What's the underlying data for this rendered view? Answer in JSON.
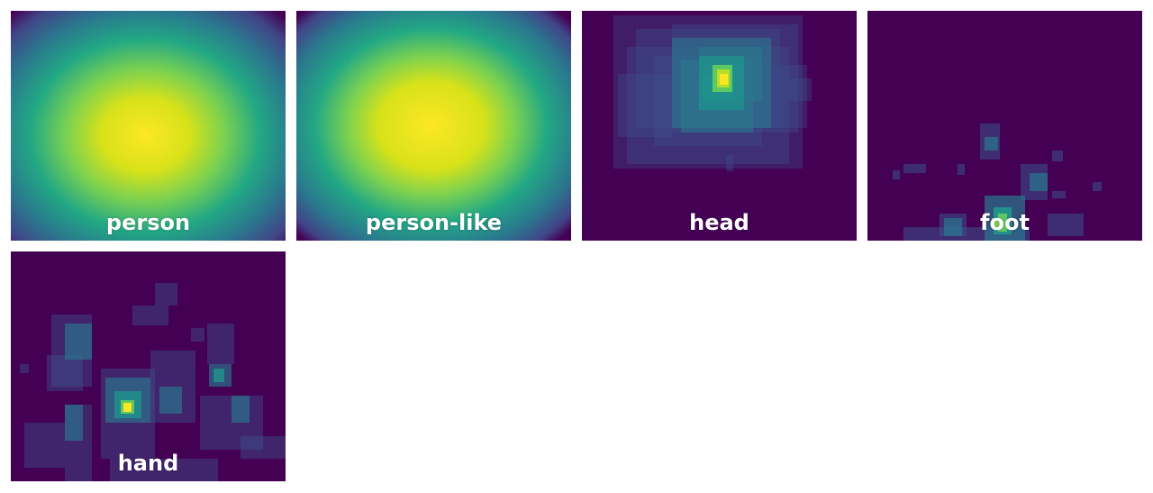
{
  "colors": {
    "background": "#440154",
    "low": "#3b528b",
    "mid": "#21918c",
    "high": "#5ec962",
    "peak": "#fde725",
    "label": "#ffffff"
  },
  "panels": [
    {
      "label": "person",
      "kind": "smooth"
    },
    {
      "label": "person-like",
      "kind": "smooth-wide"
    },
    {
      "label": "head",
      "kind": "boxes"
    },
    {
      "label": "foot",
      "kind": "boxes"
    },
    {
      "label": "hand",
      "kind": "boxes"
    }
  ]
}
